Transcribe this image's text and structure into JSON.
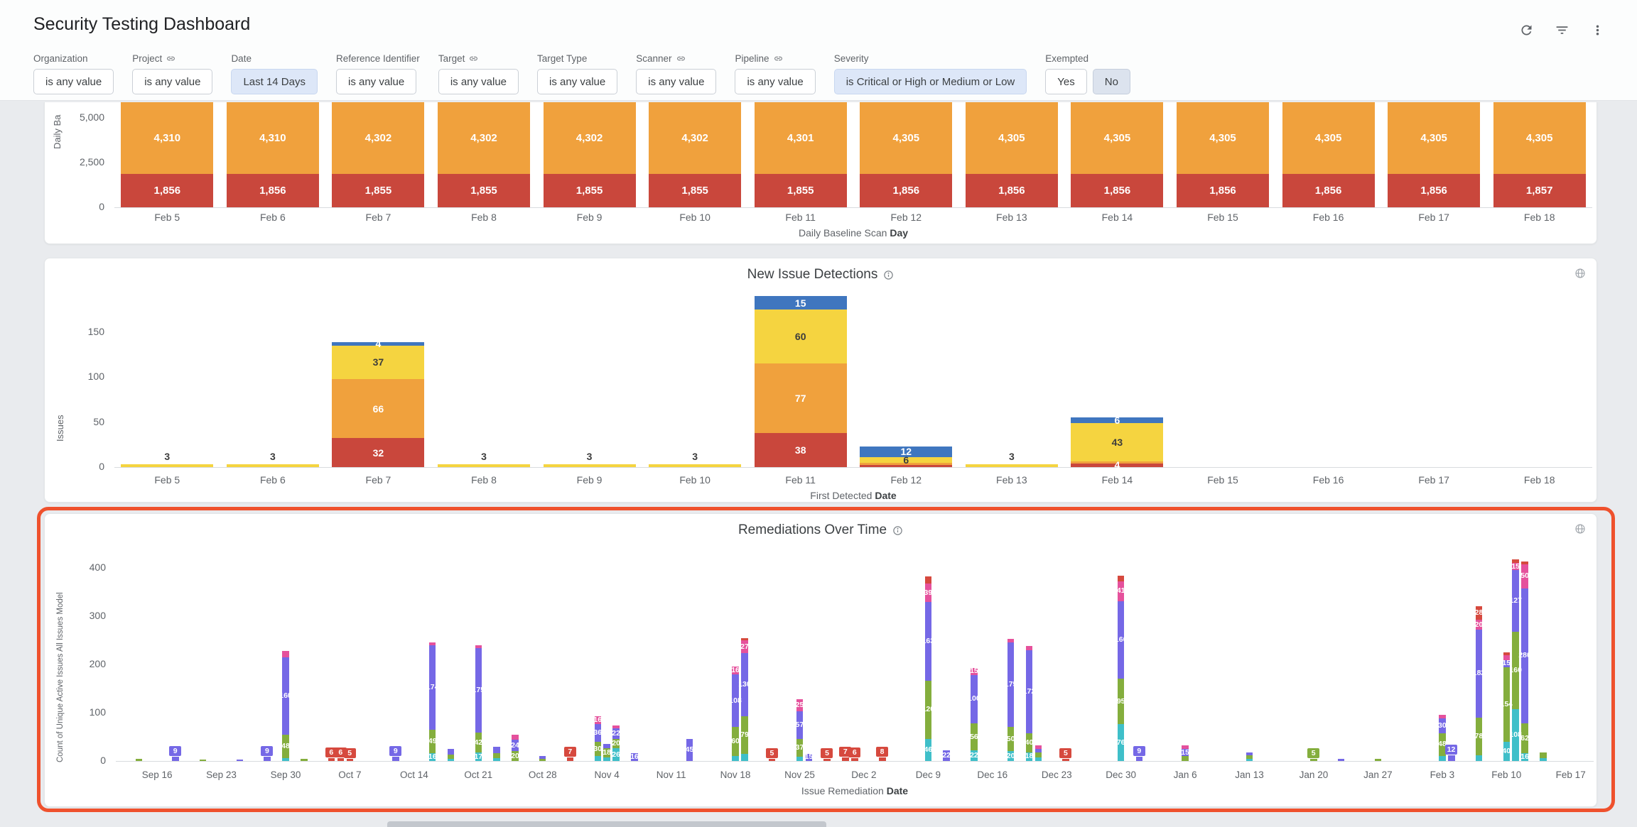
{
  "header": {
    "title": "Security Testing Dashboard"
  },
  "header_icons": [
    "refresh-icon",
    "filter-icon",
    "more-vert-icon"
  ],
  "theme": {
    "active_chip_bg": "#DDE7F8",
    "selected_chip_bg": "#DCE3EE",
    "annotation_color": "#EF512D",
    "page_bg": "#E9EBEE"
  },
  "filters": [
    {
      "label": "Organization",
      "linked": false,
      "chips": [
        {
          "text": "is any value",
          "style": "default"
        }
      ]
    },
    {
      "label": "Project",
      "linked": true,
      "chips": [
        {
          "text": "is any value",
          "style": "default"
        }
      ]
    },
    {
      "label": "Date",
      "linked": false,
      "chips": [
        {
          "text": "Last 14 Days",
          "style": "active"
        }
      ]
    },
    {
      "label": "Reference Identifier",
      "linked": false,
      "chips": [
        {
          "text": "is any value",
          "style": "default"
        }
      ]
    },
    {
      "label": "Target",
      "linked": true,
      "chips": [
        {
          "text": "is any value",
          "style": "default"
        }
      ]
    },
    {
      "label": "Target Type",
      "linked": false,
      "chips": [
        {
          "text": "is any value",
          "style": "default"
        }
      ]
    },
    {
      "label": "Scanner",
      "linked": true,
      "chips": [
        {
          "text": "is any value",
          "style": "default"
        }
      ]
    },
    {
      "label": "Pipeline",
      "linked": true,
      "chips": [
        {
          "text": "is any value",
          "style": "default"
        }
      ]
    },
    {
      "label": "Severity",
      "linked": false,
      "chips": [
        {
          "text": "is Critical or High or Medium or Low",
          "style": "active"
        }
      ]
    },
    {
      "label": "Exempted",
      "linked": false,
      "chips": [
        {
          "text": "Yes",
          "style": "default"
        },
        {
          "text": "No",
          "style": "selected"
        }
      ]
    }
  ],
  "chart_data": [
    {
      "type": "bar",
      "stacked": true,
      "name": "daily-baseline-scan",
      "title": "",
      "ylabel_visible": "Daily Ba",
      "xlabel_regular": "Daily Baseline Scan",
      "xlabel_bold": "Day",
      "categories": [
        "Feb 5",
        "Feb 6",
        "Feb 7",
        "Feb 8",
        "Feb 9",
        "Feb 10",
        "Feb 11",
        "Feb 12",
        "Feb 13",
        "Feb 14",
        "Feb 15",
        "Feb 16",
        "Feb 17",
        "Feb 18"
      ],
      "yticks": [
        0,
        2500,
        5000
      ],
      "ylim": [
        0,
        5880
      ],
      "clipped_top": true,
      "legend": "none",
      "grid": false,
      "series": [
        {
          "name": "red",
          "color": "#C9473C",
          "values": [
            1856,
            1856,
            1855,
            1855,
            1855,
            1855,
            1855,
            1856,
            1856,
            1856,
            1856,
            1856,
            1856,
            1857
          ]
        },
        {
          "name": "orange",
          "color": "#F0A13D",
          "values": [
            4310,
            4310,
            4302,
            4302,
            4302,
            4302,
            4301,
            4305,
            4305,
            4305,
            4305,
            4305,
            4305,
            4305
          ]
        }
      ]
    },
    {
      "type": "bar",
      "stacked": true,
      "name": "new-issue-detections",
      "title": "New Issue Detections",
      "ylabel": "Issues",
      "xlabel_regular": "First Detected",
      "xlabel_bold": "Date",
      "categories": [
        "Feb 5",
        "Feb 6",
        "Feb 7",
        "Feb 8",
        "Feb 9",
        "Feb 10",
        "Feb 11",
        "Feb 12",
        "Feb 13",
        "Feb 14",
        "Feb 15",
        "Feb 16",
        "Feb 17",
        "Feb 18"
      ],
      "yticks": [
        0,
        50,
        100,
        150
      ],
      "ylim": [
        0,
        197
      ],
      "legend": "none",
      "grid": false,
      "series": [
        {
          "name": "red",
          "color": "#C9473C",
          "values": [
            0,
            0,
            32,
            0,
            0,
            0,
            38,
            2,
            0,
            4,
            0,
            0,
            0,
            0
          ]
        },
        {
          "name": "orange",
          "color": "#F0A13D",
          "values": [
            0,
            0,
            66,
            0,
            0,
            0,
            77,
            3,
            0,
            2,
            0,
            0,
            0,
            0
          ]
        },
        {
          "name": "yellow",
          "color": "#F5D440",
          "values": [
            3,
            3,
            37,
            3,
            3,
            3,
            60,
            6,
            3,
            43,
            0,
            0,
            0,
            0
          ]
        },
        {
          "name": "blue",
          "color": "#3F76BF",
          "values": [
            0,
            0,
            4,
            0,
            0,
            0,
            15,
            12,
            0,
            6,
            0,
            0,
            0,
            0
          ]
        }
      ]
    },
    {
      "type": "bar",
      "stacked": true,
      "name": "remediations-over-time",
      "title": "Remediations Over Time",
      "ylabel": "Count of Unique Active Issues All Issues Model",
      "xlabel_regular": "Issue Remediation",
      "xlabel_bold": "Date",
      "yticks": [
        0,
        100,
        200,
        300,
        400
      ],
      "ylim": [
        0,
        425
      ],
      "legend": "none",
      "grid": false,
      "x_range_days": 161,
      "xticks": [
        {
          "label": "Sep 16",
          "day": 4
        },
        {
          "label": "Sep 23",
          "day": 11
        },
        {
          "label": "Sep 30",
          "day": 18
        },
        {
          "label": "Oct 7",
          "day": 25
        },
        {
          "label": "Oct 14",
          "day": 32
        },
        {
          "label": "Oct 21",
          "day": 39
        },
        {
          "label": "Oct 28",
          "day": 46
        },
        {
          "label": "Nov 4",
          "day": 53
        },
        {
          "label": "Nov 11",
          "day": 60
        },
        {
          "label": "Nov 18",
          "day": 67
        },
        {
          "label": "Nov 25",
          "day": 74
        },
        {
          "label": "Dec 2",
          "day": 81
        },
        {
          "label": "Dec 9",
          "day": 88
        },
        {
          "label": "Dec 16",
          "day": 95
        },
        {
          "label": "Dec 23",
          "day": 102
        },
        {
          "label": "Dec 30",
          "day": 109
        },
        {
          "label": "Jan 6",
          "day": 116
        },
        {
          "label": "Jan 13",
          "day": 123
        },
        {
          "label": "Jan 20",
          "day": 130
        },
        {
          "label": "Jan 27",
          "day": 137
        },
        {
          "label": "Feb 3",
          "day": 144
        },
        {
          "label": "Feb 10",
          "day": 151
        },
        {
          "label": "Feb 17",
          "day": 158
        }
      ],
      "series_colors": {
        "teal": "#3FBFC9",
        "green": "#84AE3D",
        "purple": "#7568E6",
        "pink": "#E5519C",
        "red": "#D6493E"
      },
      "stack_order": [
        "teal",
        "green",
        "purple",
        "pink",
        "red"
      ],
      "bars": [
        {
          "day": 2,
          "green": 4
        },
        {
          "day": 6,
          "purple": 9
        },
        {
          "day": 9,
          "green": 3
        },
        {
          "day": 13,
          "purple": 3
        },
        {
          "day": 16,
          "purple": 9
        },
        {
          "day": 18,
          "teal": 6,
          "green": 48,
          "purple": 160,
          "pink": 14
        },
        {
          "day": 20,
          "green": 4
        },
        {
          "day": 23,
          "red": 6
        },
        {
          "day": 24,
          "red": 6
        },
        {
          "day": 25,
          "red": 5
        },
        {
          "day": 30,
          "purple": 9
        },
        {
          "day": 34,
          "teal": 16,
          "green": 49,
          "purple": 174,
          "pink": 6
        },
        {
          "day": 36,
          "teal": 5,
          "green": 8,
          "purple": 12
        },
        {
          "day": 39,
          "teal": 17,
          "green": 42,
          "purple": 175,
          "pink": 5
        },
        {
          "day": 41,
          "teal": 6,
          "green": 10,
          "purple": 14
        },
        {
          "day": 43,
          "green": 20,
          "purple": 24,
          "pink": 11
        },
        {
          "day": 46,
          "green": 5,
          "purple": 6
        },
        {
          "day": 49,
          "red": 7
        },
        {
          "day": 52,
          "teal": 10,
          "green": 30,
          "purple": 36,
          "pink": 16
        },
        {
          "day": 53,
          "teal": 8,
          "green": 18,
          "purple": 10
        },
        {
          "day": 54,
          "teal": 26,
          "green": 20,
          "purple": 22,
          "pink": 5
        },
        {
          "day": 56,
          "purple": 16
        },
        {
          "day": 62,
          "purple": 45
        },
        {
          "day": 67,
          "teal": 11,
          "green": 60,
          "purple": 108,
          "pink": 16
        },
        {
          "day": 68,
          "teal": 14,
          "green": 79,
          "purple": 130,
          "pink": 27,
          "red": 5
        },
        {
          "day": 71,
          "red": 5
        },
        {
          "day": 74,
          "teal": 9,
          "green": 37,
          "purple": 57,
          "pink": 25
        },
        {
          "day": 75,
          "purple": 15
        },
        {
          "day": 77,
          "red": 5
        },
        {
          "day": 79,
          "red": 7
        },
        {
          "day": 80,
          "red": 6
        },
        {
          "day": 83,
          "red": 8
        },
        {
          "day": 88,
          "teal": 46,
          "green": 120,
          "purple": 163,
          "pink": 39,
          "red": 14
        },
        {
          "day": 90,
          "purple": 22
        },
        {
          "day": 93,
          "teal": 22,
          "green": 56,
          "purple": 100,
          "pink": 15
        },
        {
          "day": 97,
          "teal": 20,
          "green": 50,
          "purple": 175,
          "pink": 8
        },
        {
          "day": 99,
          "teal": 18,
          "green": 40,
          "purple": 172,
          "pink": 8
        },
        {
          "day": 100,
          "teal": 7,
          "green": 10,
          "purple": 8,
          "pink": 8
        },
        {
          "day": 103,
          "red": 5
        },
        {
          "day": 109,
          "teal": 76,
          "green": 95,
          "purple": 160,
          "pink": 41,
          "red": 12
        },
        {
          "day": 111,
          "purple": 9
        },
        {
          "day": 116,
          "green": 10,
          "purple": 15,
          "pink": 8
        },
        {
          "day": 123,
          "teal": 4,
          "green": 8,
          "purple": 6
        },
        {
          "day": 130,
          "green": 5
        },
        {
          "day": 133,
          "purple": 4
        },
        {
          "day": 137,
          "green": 4
        },
        {
          "day": 144,
          "teal": 10,
          "green": 48,
          "purple": 30,
          "pink": 8
        },
        {
          "day": 145,
          "purple": 12
        },
        {
          "day": 148,
          "teal": 12,
          "green": 78,
          "purple": 182,
          "pink": 20,
          "red": 28
        },
        {
          "day": 151,
          "teal": 40,
          "green": 154,
          "purple": 15,
          "pink": 10,
          "red": 6
        },
        {
          "day": 152,
          "teal": 108,
          "green": 160,
          "purple": 127,
          "pink": 15,
          "red": 8
        },
        {
          "day": 153,
          "teal": 16,
          "green": 62,
          "purple": 280,
          "pink": 50,
          "red": 5
        },
        {
          "day": 155,
          "teal": 6,
          "green": 12
        }
      ]
    }
  ]
}
